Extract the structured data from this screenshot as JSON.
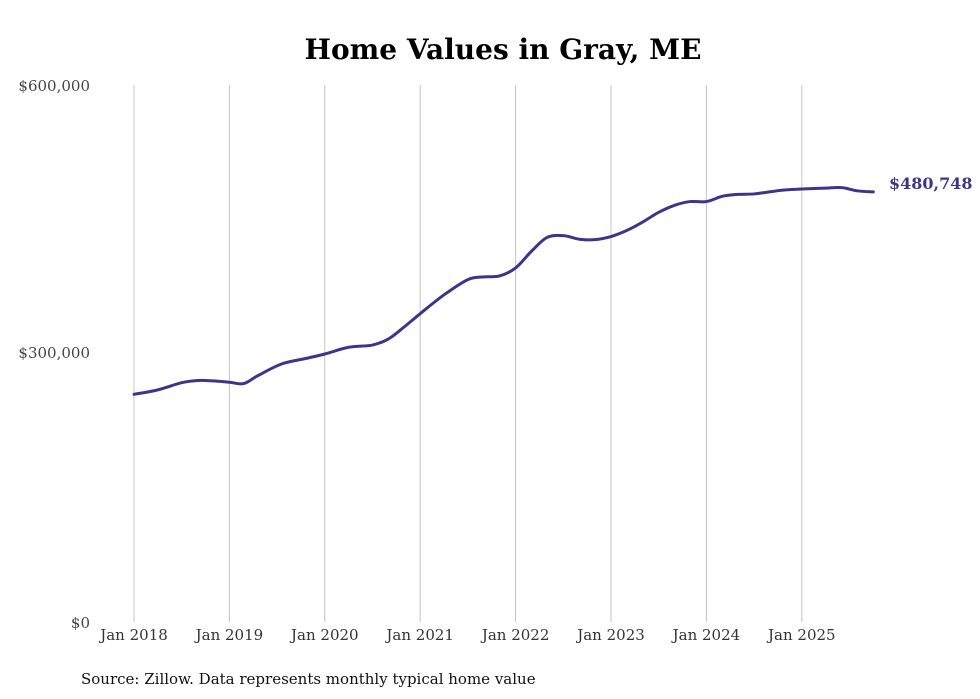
{
  "chart_data": {
    "type": "line",
    "title": "Home Values in Gray, ME",
    "xlabel": "",
    "ylabel": "",
    "ylim": [
      0,
      600000
    ],
    "y_ticks": [
      {
        "value": 0,
        "label": "$0"
      },
      {
        "value": 300000,
        "label": "$300,000"
      },
      {
        "value": 600000,
        "label": "$600,000"
      }
    ],
    "x_ticks": [
      {
        "year": 2018,
        "label": "Jan 2018"
      },
      {
        "year": 2019,
        "label": "Jan 2019"
      },
      {
        "year": 2020,
        "label": "Jan 2020"
      },
      {
        "year": 2021,
        "label": "Jan 2021"
      },
      {
        "year": 2022,
        "label": "Jan 2022"
      },
      {
        "year": 2023,
        "label": "Jan 2023"
      },
      {
        "year": 2024,
        "label": "Jan 2024"
      },
      {
        "year": 2025,
        "label": "Jan 2025"
      }
    ],
    "grid": "vertical",
    "series": [
      {
        "name": "Typical home value",
        "color": "#3d3589",
        "x": [
          2018.0,
          2018.25,
          2018.5,
          2018.67,
          2018.83,
          2019.0,
          2019.15,
          2019.3,
          2019.55,
          2019.8,
          2020.0,
          2020.25,
          2020.5,
          2020.67,
          2020.83,
          2021.0,
          2021.25,
          2021.5,
          2021.67,
          2021.83,
          2022.0,
          2022.17,
          2022.33,
          2022.5,
          2022.67,
          2022.83,
          2023.0,
          2023.17,
          2023.33,
          2023.5,
          2023.67,
          2023.83,
          2024.0,
          2024.17,
          2024.33,
          2024.5,
          2024.67,
          2024.83,
          2025.0,
          2025.25,
          2025.42,
          2025.58,
          2025.75
        ],
        "values": [
          255000,
          260000,
          268000,
          270500,
          270000,
          268500,
          267000,
          276000,
          289000,
          295000,
          300000,
          307500,
          310000,
          317000,
          330000,
          345000,
          366000,
          383000,
          386000,
          387000,
          396000,
          415000,
          430000,
          432000,
          428000,
          427500,
          431000,
          438000,
          447000,
          458000,
          466000,
          470000,
          470000,
          476000,
          478000,
          478500,
          481000,
          483000,
          484000,
          485000,
          485500,
          482000,
          480748
        ]
      }
    ],
    "end_label": "$480,748",
    "source_note": "Source: Zillow. Data represents monthly typical home value"
  }
}
